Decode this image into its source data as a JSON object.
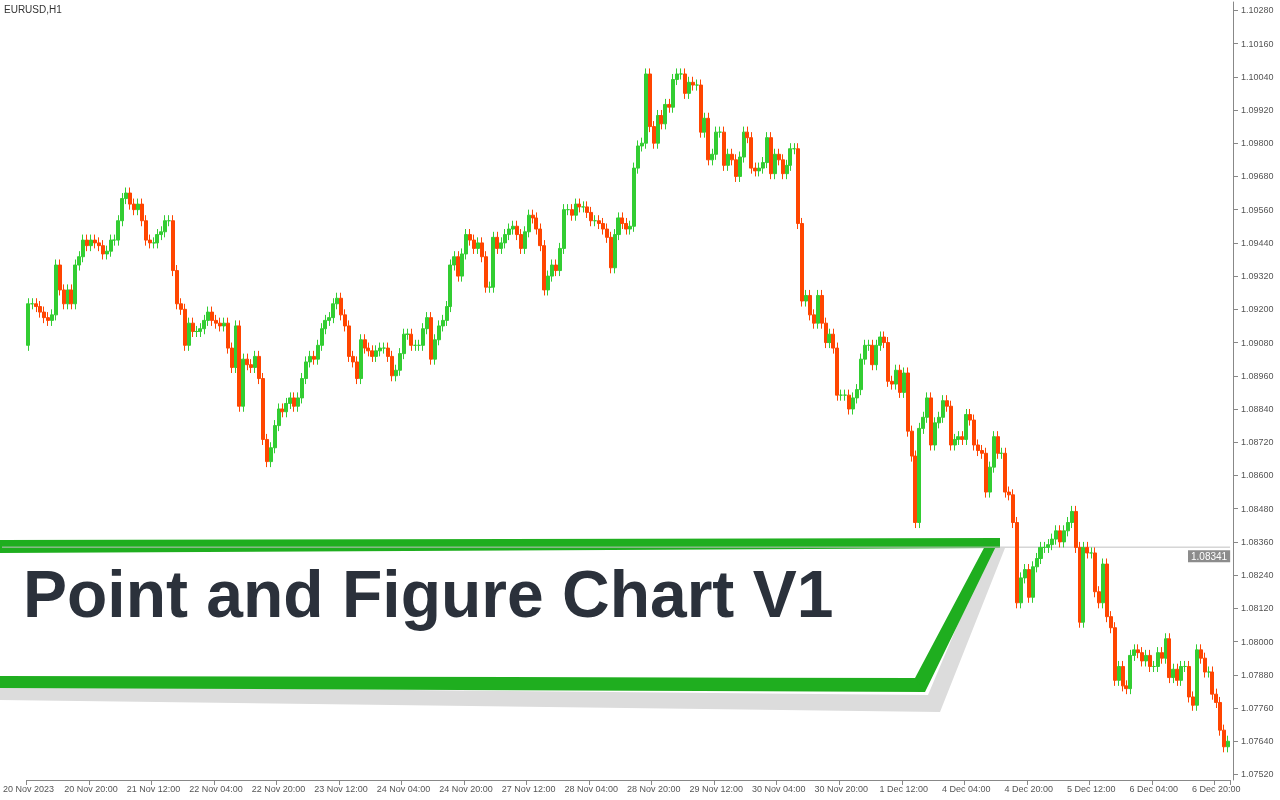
{
  "chart_data": {
    "type": "candlestick",
    "title": "Point and Figure Chart V1",
    "annotations": [
      "EURUSD,H1"
    ],
    "categories": [
      "20 Nov 2023",
      null,
      null,
      null,
      null,
      null,
      null,
      null,
      null,
      null,
      null,
      null,
      null,
      null,
      null,
      null,
      "20 Nov 20:00",
      null,
      null,
      null,
      null,
      null,
      null,
      null,
      null,
      null,
      null,
      null,
      null,
      null,
      null,
      null,
      "21 Nov 12:00",
      null,
      null,
      null,
      null,
      null,
      null,
      null,
      null,
      null,
      null,
      null,
      null,
      null,
      null,
      null,
      "22 Nov 04:00",
      null,
      null,
      null,
      null,
      null,
      null,
      null,
      null,
      null,
      null,
      null,
      null,
      null,
      null,
      null,
      "22 Nov 20:00",
      null,
      null,
      null,
      null,
      null,
      null,
      null,
      null,
      null,
      null,
      null,
      null,
      null,
      null,
      null,
      "23 Nov 12:00",
      null,
      null,
      null,
      null,
      null,
      null,
      null,
      null,
      null,
      null,
      null,
      null,
      null,
      null,
      null,
      "24 Nov 04:00",
      null,
      null,
      null,
      null,
      null,
      null,
      null,
      null,
      null,
      null,
      null,
      null,
      null,
      null,
      null,
      "24 Nov 20:00",
      null,
      null,
      null,
      null,
      null,
      null,
      null,
      null,
      null,
      null,
      null,
      null,
      null,
      null,
      null,
      "27 Nov 12:00",
      null,
      null,
      null,
      null,
      null,
      null,
      null,
      null,
      null,
      null,
      null,
      null,
      null,
      null,
      null,
      "28 Nov 04:00",
      null,
      null,
      null,
      null,
      null,
      null,
      null,
      null,
      null,
      null,
      null,
      null,
      null,
      null,
      null,
      "28 Nov 20:00",
      null,
      null,
      null,
      null,
      null,
      null,
      null,
      null,
      null,
      null,
      null,
      null,
      null,
      null,
      null,
      "29 Nov 12:00",
      null,
      null,
      null,
      null,
      null,
      null,
      null,
      null,
      null,
      null,
      null,
      null,
      null,
      null,
      null,
      "30 Nov 04:00",
      null,
      null,
      null,
      null,
      null,
      null,
      null,
      null,
      null,
      null,
      null,
      null,
      null,
      null,
      null,
      "30 Nov 20:00",
      null,
      null,
      null,
      null,
      null,
      null,
      null,
      null,
      null,
      null,
      null,
      null,
      null,
      null,
      null,
      "1 Dec 12:00",
      null,
      null,
      null,
      null,
      null,
      null,
      null,
      null,
      null,
      null,
      null,
      null,
      null,
      null,
      null,
      "4 Dec 04:00",
      null,
      null,
      null,
      null,
      null,
      null,
      null,
      null,
      null,
      null,
      null,
      null,
      null,
      null,
      null,
      "4 Dec 20:00",
      null,
      null,
      null,
      null,
      null,
      null,
      null,
      null,
      null,
      null,
      null,
      null,
      null,
      null,
      null,
      "5 Dec 12:00",
      null,
      null,
      null,
      null,
      null,
      null,
      null,
      null,
      null,
      null,
      null,
      null,
      null,
      null,
      null,
      "6 Dec 04:00",
      null,
      null,
      null,
      null,
      null,
      null,
      null,
      null,
      null,
      null,
      null,
      null,
      null,
      null,
      null,
      "6 Dec 20:00",
      null,
      null,
      null
    ],
    "ohlc": [
      [
        1.0907,
        1.0924,
        1.0905,
        1.0922
      ],
      [
        1.0922,
        1.0924,
        1.092,
        1.0922
      ],
      [
        1.0922,
        1.0924,
        1.0919,
        1.0921
      ],
      [
        1.0921,
        1.0923,
        1.0917,
        1.0919
      ],
      [
        1.0919,
        1.0921,
        1.0915,
        1.0917
      ],
      [
        1.0917,
        1.0919,
        1.0914,
        1.0916
      ],
      [
        1.0916,
        1.092,
        1.0914,
        1.0918
      ],
      [
        1.0918,
        1.0938,
        1.0916,
        1.0936
      ],
      [
        1.0936,
        1.0938,
        1.0925,
        1.0927
      ],
      [
        1.0927,
        1.0929,
        1.092,
        1.0922
      ],
      [
        1.0922,
        1.0929,
        1.092,
        1.0927
      ],
      [
        1.0927,
        1.0929,
        1.092,
        1.0922
      ],
      [
        1.0922,
        1.0938,
        1.092,
        1.0936
      ],
      [
        1.0936,
        1.0941,
        1.0934,
        1.0939
      ],
      [
        1.0939,
        1.0947,
        1.0937,
        1.0945
      ],
      [
        1.0945,
        1.0947,
        1.0941,
        1.0943
      ],
      [
        1.0943,
        1.0947,
        1.0941,
        1.0945
      ],
      [
        1.0945,
        1.0947,
        1.0942,
        1.0944
      ],
      [
        1.0944,
        1.0946,
        1.0941,
        1.0943
      ],
      [
        1.0943,
        1.0945,
        1.0938,
        1.094
      ],
      [
        1.094,
        1.0943,
        1.0938,
        1.0941
      ],
      [
        1.0941,
        1.0947,
        1.0939,
        1.0945
      ],
      [
        1.0945,
        1.0947,
        1.0943,
        1.0945
      ],
      [
        1.0945,
        1.0954,
        1.0943,
        1.0952
      ],
      [
        1.0952,
        1.0962,
        1.095,
        1.096
      ],
      [
        1.096,
        1.0964,
        1.0958,
        1.0962
      ],
      [
        1.0962,
        1.0964,
        1.0956,
        1.0958
      ],
      [
        1.0958,
        1.096,
        1.0954,
        1.0956
      ],
      [
        1.0956,
        1.096,
        1.0954,
        1.0958
      ],
      [
        1.0958,
        1.096,
        1.095,
        1.0952
      ],
      [
        1.0952,
        1.0954,
        1.0943,
        1.0945
      ],
      [
        1.0945,
        1.0947,
        1.0942,
        1.0944
      ],
      [
        1.0944,
        1.0946,
        1.0942,
        1.0944
      ],
      [
        1.0944,
        1.0949,
        1.0942,
        1.0947
      ],
      [
        1.0947,
        1.095,
        1.0945,
        1.0948
      ],
      [
        1.0948,
        1.0954,
        1.0946,
        1.0952
      ],
      [
        1.0952,
        1.0954,
        1.095,
        1.0952
      ],
      [
        1.0952,
        1.0954,
        1.0932,
        1.0934
      ],
      [
        1.0934,
        1.0936,
        1.092,
        1.0922
      ],
      [
        1.0922,
        1.0924,
        1.0918,
        1.092
      ],
      [
        1.092,
        1.0922,
        1.0905,
        1.0907
      ],
      [
        1.0907,
        1.0917,
        1.0905,
        1.0915
      ],
      [
        1.0915,
        1.0917,
        1.091,
        1.0912
      ],
      [
        1.0912,
        1.0914,
        1.091,
        1.0912
      ],
      [
        1.0912,
        1.0915,
        1.091,
        1.0913
      ],
      [
        1.0913,
        1.0918,
        1.0911,
        1.0916
      ],
      [
        1.0916,
        1.0921,
        1.0914,
        1.0919
      ],
      [
        1.0919,
        1.0921,
        1.0914,
        1.0916
      ],
      [
        1.0916,
        1.0918,
        1.0913,
        1.0915
      ],
      [
        1.0915,
        1.0917,
        1.0912,
        1.0914
      ],
      [
        1.0914,
        1.0917,
        1.0912,
        1.0915
      ],
      [
        1.0915,
        1.0917,
        1.0904,
        1.0906
      ],
      [
        1.0906,
        1.0908,
        1.0897,
        1.0899
      ],
      [
        1.0899,
        1.0916,
        1.0897,
        1.0914
      ],
      [
        1.0914,
        1.0916,
        1.0883,
        1.0885
      ],
      [
        1.0885,
        1.0904,
        1.0883,
        1.0902
      ],
      [
        1.0902,
        1.0904,
        1.0898,
        1.09
      ],
      [
        1.09,
        1.0902,
        1.0897,
        1.0899
      ],
      [
        1.0899,
        1.0905,
        1.0897,
        1.0903
      ],
      [
        1.0903,
        1.0905,
        1.0893,
        1.0895
      ],
      [
        1.0895,
        1.0897,
        1.0871,
        1.0873
      ],
      [
        1.0873,
        1.0875,
        1.0863,
        1.0865
      ],
      [
        1.0865,
        1.0872,
        1.0863,
        1.087
      ],
      [
        1.087,
        1.088,
        1.0868,
        1.0878
      ],
      [
        1.0878,
        1.0886,
        1.0876,
        1.0884
      ],
      [
        1.0884,
        1.0886,
        1.0881,
        1.0883
      ],
      [
        1.0883,
        1.0888,
        1.0881,
        1.0886
      ],
      [
        1.0886,
        1.089,
        1.0884,
        1.0888
      ],
      [
        1.0888,
        1.089,
        1.0883,
        1.0885
      ],
      [
        1.0885,
        1.089,
        1.0883,
        1.0888
      ],
      [
        1.0888,
        1.0897,
        1.0886,
        1.0895
      ],
      [
        1.0895,
        1.0903,
        1.0893,
        1.0901
      ],
      [
        1.0901,
        1.0905,
        1.0899,
        1.0903
      ],
      [
        1.0903,
        1.0905,
        1.09,
        1.0902
      ],
      [
        1.0902,
        1.0909,
        1.09,
        1.0907
      ],
      [
        1.0907,
        1.0915,
        1.0905,
        1.0913
      ],
      [
        1.0913,
        1.0918,
        1.0911,
        1.0916
      ],
      [
        1.0916,
        1.0919,
        1.0914,
        1.0917
      ],
      [
        1.0917,
        1.0924,
        1.0915,
        1.0922
      ],
      [
        1.0922,
        1.0926,
        1.092,
        1.0924
      ],
      [
        1.0924,
        1.0926,
        1.0916,
        1.0918
      ],
      [
        1.0918,
        1.092,
        1.0912,
        1.0914
      ],
      [
        1.0914,
        1.0916,
        1.0901,
        1.0903
      ],
      [
        1.0903,
        1.0905,
        1.0899,
        1.0901
      ],
      [
        1.0901,
        1.0903,
        1.0893,
        1.0895
      ],
      [
        1.0895,
        1.0911,
        1.0893,
        1.0909
      ],
      [
        1.0909,
        1.0911,
        1.0904,
        1.0906
      ],
      [
        1.0906,
        1.0908,
        1.0903,
        1.0905
      ],
      [
        1.0905,
        1.0907,
        1.0901,
        1.0903
      ],
      [
        1.0903,
        1.0907,
        1.0901,
        1.0905
      ],
      [
        1.0905,
        1.0908,
        1.0903,
        1.0906
      ],
      [
        1.0906,
        1.0908,
        1.0904,
        1.0906
      ],
      [
        1.0906,
        1.0908,
        1.0901,
        1.0903
      ],
      [
        1.0903,
        1.0905,
        1.0894,
        1.0896
      ],
      [
        1.0896,
        1.09,
        1.0894,
        1.0898
      ],
      [
        1.0898,
        1.0906,
        1.0896,
        1.0904
      ],
      [
        1.0904,
        1.0913,
        1.0902,
        1.0911
      ],
      [
        1.0911,
        1.0913,
        1.0909,
        1.0911
      ],
      [
        1.0911,
        1.0913,
        1.0905,
        1.0907
      ],
      [
        1.0907,
        1.0909,
        1.0905,
        1.0907
      ],
      [
        1.0907,
        1.0909,
        1.0905,
        1.0907
      ],
      [
        1.0907,
        1.0915,
        1.0905,
        1.0913
      ],
      [
        1.0913,
        1.0919,
        1.0911,
        1.0917
      ],
      [
        1.0917,
        1.0919,
        1.09,
        1.0902
      ],
      [
        1.0902,
        1.0911,
        1.09,
        1.0909
      ],
      [
        1.0909,
        1.0916,
        1.0907,
        1.0914
      ],
      [
        1.0914,
        1.0918,
        1.0912,
        1.0916
      ],
      [
        1.0916,
        1.0923,
        1.0914,
        1.0921
      ],
      [
        1.0921,
        1.0938,
        1.0919,
        1.0936
      ],
      [
        1.0936,
        1.0941,
        1.0934,
        1.0939
      ],
      [
        1.0939,
        1.0941,
        1.093,
        1.0932
      ],
      [
        1.0932,
        1.0942,
        1.093,
        1.094
      ],
      [
        1.094,
        1.0949,
        1.0938,
        1.0947
      ],
      [
        1.0947,
        1.0949,
        1.0943,
        1.0945
      ],
      [
        1.0945,
        1.0947,
        1.094,
        1.0942
      ],
      [
        1.0942,
        1.0946,
        1.094,
        1.0944
      ],
      [
        1.0944,
        1.0946,
        1.0937,
        1.0939
      ],
      [
        1.0939,
        1.0941,
        1.0926,
        1.0928
      ],
      [
        1.0928,
        1.093,
        1.0926,
        1.0928
      ],
      [
        1.0928,
        1.0948,
        1.0926,
        1.0946
      ],
      [
        1.0946,
        1.0948,
        1.094,
        1.0942
      ],
      [
        1.0942,
        1.0946,
        1.094,
        1.0944
      ],
      [
        1.0944,
        1.0949,
        1.0942,
        1.0947
      ],
      [
        1.0947,
        1.0951,
        1.0945,
        1.0949
      ],
      [
        1.0949,
        1.0952,
        1.0947,
        1.095
      ],
      [
        1.095,
        1.0952,
        1.0945,
        1.0947
      ],
      [
        1.0947,
        1.0949,
        1.094,
        1.0942
      ],
      [
        1.0942,
        1.095,
        1.094,
        1.0948
      ],
      [
        1.0948,
        1.0956,
        1.0946,
        1.0954
      ],
      [
        1.0954,
        1.0956,
        1.0951,
        1.0953
      ],
      [
        1.0953,
        1.0955,
        1.0947,
        1.0949
      ],
      [
        1.0949,
        1.0951,
        1.0941,
        1.0943
      ],
      [
        1.0943,
        1.0945,
        1.0925,
        1.0927
      ],
      [
        1.0927,
        1.0934,
        1.0925,
        1.0932
      ],
      [
        1.0932,
        1.0938,
        1.093,
        1.0936
      ],
      [
        1.0936,
        1.0938,
        1.0932,
        1.0934
      ],
      [
        1.0934,
        1.0944,
        1.0932,
        1.0942
      ],
      [
        1.0942,
        1.0958,
        1.094,
        1.0956
      ],
      [
        1.0956,
        1.0958,
        1.0954,
        1.0956
      ],
      [
        1.0956,
        1.0958,
        1.0952,
        1.0954
      ],
      [
        1.0954,
        1.096,
        1.0952,
        1.0958
      ],
      [
        1.0958,
        1.096,
        1.0955,
        1.0957
      ],
      [
        1.0957,
        1.0959,
        1.0955,
        1.0957
      ],
      [
        1.0957,
        1.0959,
        1.0953,
        1.0955
      ],
      [
        1.0955,
        1.0957,
        1.095,
        1.0952
      ],
      [
        1.0952,
        1.0954,
        1.095,
        1.0952
      ],
      [
        1.0952,
        1.0954,
        1.0949,
        1.0951
      ],
      [
        1.0951,
        1.0953,
        1.0947,
        1.0949
      ],
      [
        1.0949,
        1.0951,
        1.0944,
        1.0946
      ],
      [
        1.0946,
        1.0948,
        1.0933,
        1.0935
      ],
      [
        1.0935,
        1.0949,
        1.0933,
        1.0947
      ],
      [
        1.0947,
        1.0955,
        1.0945,
        1.0953
      ],
      [
        1.0953,
        1.0955,
        1.0949,
        1.0951
      ],
      [
        1.0951,
        1.0953,
        1.0947,
        1.0949
      ],
      [
        1.0949,
        1.0952,
        1.0947,
        1.095
      ],
      [
        1.095,
        1.0973,
        1.0948,
        1.0971
      ],
      [
        1.0971,
        1.0981,
        1.0969,
        1.0979
      ],
      [
        1.0979,
        1.0982,
        1.0977,
        1.098
      ],
      [
        1.098,
        1.1007,
        1.0978,
        1.1005
      ],
      [
        1.1005,
        1.1007,
        1.0984,
        1.0986
      ],
      [
        1.0986,
        1.0988,
        1.0978,
        1.098
      ],
      [
        1.098,
        1.0992,
        1.0978,
        1.099
      ],
      [
        1.099,
        1.0992,
        1.0985,
        1.0987
      ],
      [
        1.0987,
        1.0996,
        1.0985,
        1.0994
      ],
      [
        1.0994,
        1.0996,
        1.0991,
        1.0993
      ],
      [
        1.0993,
        1.1005,
        1.0991,
        1.1003
      ],
      [
        1.1003,
        1.1007,
        1.1001,
        1.1005
      ],
      [
        1.1005,
        1.1007,
        1.1003,
        1.1005
      ],
      [
        1.1005,
        1.1007,
        1.0996,
        1.0998
      ],
      [
        1.0998,
        1.1004,
        1.0996,
        1.1002
      ],
      [
        1.1002,
        1.1004,
        1.0999,
        1.1001
      ],
      [
        1.1001,
        1.1003,
        1.0999,
        1.1001
      ],
      [
        1.1001,
        1.1003,
        1.0982,
        1.0984
      ],
      [
        1.0984,
        1.0991,
        1.0982,
        1.0989
      ],
      [
        1.0989,
        1.0991,
        1.0972,
        1.0974
      ],
      [
        1.0974,
        1.0978,
        1.0972,
        1.0976
      ],
      [
        1.0976,
        1.0986,
        1.0974,
        1.0984
      ],
      [
        1.0984,
        1.0986,
        1.0982,
        1.0984
      ],
      [
        1.0984,
        1.0986,
        1.097,
        1.0972
      ],
      [
        1.0972,
        1.0978,
        1.097,
        1.0976
      ],
      [
        1.0976,
        1.0978,
        1.0972,
        1.0974
      ],
      [
        1.0974,
        1.0976,
        1.0966,
        1.0968
      ],
      [
        1.0968,
        1.0977,
        1.0966,
        1.0975
      ],
      [
        1.0975,
        1.0986,
        1.0973,
        1.0984
      ],
      [
        1.0984,
        1.0986,
        1.098,
        1.0982
      ],
      [
        1.0982,
        1.0984,
        1.0969,
        1.0971
      ],
      [
        1.0971,
        1.0973,
        1.0968,
        1.097
      ],
      [
        1.097,
        1.0973,
        1.0968,
        1.0971
      ],
      [
        1.0971,
        1.0975,
        1.0969,
        1.0973
      ],
      [
        1.0973,
        1.0984,
        1.0971,
        1.0982
      ],
      [
        1.0982,
        1.0984,
        1.0967,
        1.0969
      ],
      [
        1.0969,
        1.0978,
        1.0967,
        1.0976
      ],
      [
        1.0976,
        1.0978,
        1.0972,
        1.0974
      ],
      [
        1.0974,
        1.0976,
        1.0967,
        1.0969
      ],
      [
        1.0969,
        1.0974,
        1.0967,
        1.0972
      ],
      [
        1.0972,
        1.098,
        1.097,
        1.0978
      ],
      [
        1.0978,
        1.098,
        1.0976,
        1.0978
      ],
      [
        1.0978,
        1.098,
        1.0949,
        1.0951
      ],
      [
        1.0951,
        1.0953,
        1.0921,
        1.0923
      ],
      [
        1.0923,
        1.0927,
        1.0921,
        1.0925
      ],
      [
        1.0925,
        1.0927,
        1.0916,
        1.0918
      ],
      [
        1.0918,
        1.092,
        1.0913,
        1.0915
      ],
      [
        1.0915,
        1.0927,
        1.0913,
        1.0925
      ],
      [
        1.0925,
        1.0927,
        1.0913,
        1.0915
      ],
      [
        1.0915,
        1.0917,
        1.0906,
        1.0908
      ],
      [
        1.0908,
        1.0913,
        1.0906,
        1.0911
      ],
      [
        1.0911,
        1.0913,
        1.0904,
        1.0906
      ],
      [
        1.0906,
        1.0908,
        1.0887,
        1.0889
      ],
      [
        1.0889,
        1.0891,
        1.0887,
        1.0889
      ],
      [
        1.0889,
        1.0891,
        1.0887,
        1.0889
      ],
      [
        1.0889,
        1.0891,
        1.0882,
        1.0884
      ],
      [
        1.0884,
        1.089,
        1.0882,
        1.0888
      ],
      [
        1.0888,
        1.0893,
        1.0886,
        1.0891
      ],
      [
        1.0891,
        1.0904,
        1.0889,
        1.0902
      ],
      [
        1.0902,
        1.0909,
        1.09,
        1.0907
      ],
      [
        1.0907,
        1.0909,
        1.0905,
        1.0907
      ],
      [
        1.0907,
        1.0909,
        1.0898,
        1.09
      ],
      [
        1.09,
        1.0909,
        1.0898,
        1.0907
      ],
      [
        1.0907,
        1.0912,
        1.0905,
        1.091
      ],
      [
        1.091,
        1.0912,
        1.0906,
        1.0908
      ],
      [
        1.0908,
        1.091,
        1.0892,
        1.0894
      ],
      [
        1.0894,
        1.0896,
        1.0891,
        1.0893
      ],
      [
        1.0893,
        1.09,
        1.0891,
        1.0898
      ],
      [
        1.0898,
        1.09,
        1.0888,
        1.089
      ],
      [
        1.089,
        1.0899,
        1.0888,
        1.0897
      ],
      [
        1.0897,
        1.0899,
        1.0874,
        1.0876
      ],
      [
        1.0876,
        1.0878,
        1.0865,
        1.0867
      ],
      [
        1.0867,
        1.0869,
        1.0841,
        1.0843
      ],
      [
        1.0843,
        1.0879,
        1.0841,
        1.0877
      ],
      [
        1.0877,
        1.0883,
        1.0875,
        1.0881
      ],
      [
        1.0881,
        1.089,
        1.0879,
        1.0888
      ],
      [
        1.0888,
        1.089,
        1.0869,
        1.0871
      ],
      [
        1.0871,
        1.0881,
        1.0869,
        1.0879
      ],
      [
        1.0879,
        1.0883,
        1.0877,
        1.0881
      ],
      [
        1.0881,
        1.0889,
        1.0879,
        1.0887
      ],
      [
        1.0887,
        1.0889,
        1.0883,
        1.0885
      ],
      [
        1.0885,
        1.0887,
        1.0869,
        1.0871
      ],
      [
        1.0871,
        1.0875,
        1.0869,
        1.0873
      ],
      [
        1.0873,
        1.0876,
        1.0871,
        1.0874
      ],
      [
        1.0874,
        1.0876,
        1.0871,
        1.0873
      ],
      [
        1.0873,
        1.0884,
        1.0871,
        1.0882
      ],
      [
        1.0882,
        1.0884,
        1.0878,
        1.088
      ],
      [
        1.088,
        1.0882,
        1.0869,
        1.0871
      ],
      [
        1.0871,
        1.0873,
        1.0867,
        1.0869
      ],
      [
        1.0869,
        1.0871,
        1.0866,
        1.0868
      ],
      [
        1.0868,
        1.087,
        1.0852,
        1.0854
      ],
      [
        1.0854,
        1.0865,
        1.0852,
        1.0863
      ],
      [
        1.0863,
        1.0876,
        1.0861,
        1.0874
      ],
      [
        1.0874,
        1.0876,
        1.0866,
        1.0868
      ],
      [
        1.0868,
        1.087,
        1.0866,
        1.0868
      ],
      [
        1.0868,
        1.087,
        1.0852,
        1.0854
      ],
      [
        1.0854,
        1.0856,
        1.0851,
        1.0853
      ],
      [
        1.0853,
        1.0855,
        1.0841,
        1.0843
      ],
      [
        1.0843,
        1.0845,
        1.0812,
        1.0814
      ],
      [
        1.0814,
        1.0825,
        1.0812,
        1.0823
      ],
      [
        1.0823,
        1.0828,
        1.0821,
        1.0826
      ],
      [
        1.0826,
        1.0828,
        1.0814,
        1.0816
      ],
      [
        1.0816,
        1.0829,
        1.0814,
        1.0827
      ],
      [
        1.0827,
        1.0832,
        1.0825,
        1.083
      ],
      [
        1.083,
        1.0836,
        1.0828,
        1.0834
      ],
      [
        1.0834,
        1.0836,
        1.0832,
        1.0834
      ],
      [
        1.0834,
        1.0837,
        1.0832,
        1.0835
      ],
      [
        1.0835,
        1.0839,
        1.0833,
        1.0837
      ],
      [
        1.0837,
        1.0842,
        1.0835,
        1.084
      ],
      [
        1.084,
        1.0842,
        1.0834,
        1.0836
      ],
      [
        1.0836,
        1.0842,
        1.0834,
        1.084
      ],
      [
        1.084,
        1.0845,
        1.0838,
        1.0843
      ],
      [
        1.0843,
        1.0849,
        1.0841,
        1.0847
      ],
      [
        1.0847,
        1.0849,
        1.0832,
        1.0834
      ],
      [
        1.0834,
        1.0836,
        1.0805,
        1.0807
      ],
      [
        1.0807,
        1.0836,
        1.0805,
        1.0834
      ],
      [
        1.0834,
        1.0836,
        1.083,
        1.0832
      ],
      [
        1.0832,
        1.0834,
        1.083,
        1.0832
      ],
      [
        1.0832,
        1.0834,
        1.0816,
        1.0818
      ],
      [
        1.0818,
        1.082,
        1.0812,
        1.0814
      ],
      [
        1.0814,
        1.083,
        1.0812,
        1.0828
      ],
      [
        1.0828,
        1.083,
        1.0807,
        1.0809
      ],
      [
        1.0809,
        1.0811,
        1.0803,
        1.0805
      ],
      [
        1.0805,
        1.0807,
        1.0784,
        1.0786
      ],
      [
        1.0786,
        1.0793,
        1.0784,
        1.0791
      ],
      [
        1.0791,
        1.0793,
        1.0782,
        1.0784
      ],
      [
        1.0784,
        1.0786,
        1.0781,
        1.0783
      ],
      [
        1.0783,
        1.0797,
        1.0781,
        1.0795
      ],
      [
        1.0795,
        1.0799,
        1.0793,
        1.0797
      ],
      [
        1.0797,
        1.0799,
        1.0794,
        1.0796
      ],
      [
        1.0796,
        1.0798,
        1.0791,
        1.0793
      ],
      [
        1.0793,
        1.0797,
        1.0791,
        1.0795
      ],
      [
        1.0795,
        1.0797,
        1.0789,
        1.0791
      ],
      [
        1.0791,
        1.0793,
        1.0789,
        1.0791
      ],
      [
        1.0791,
        1.0798,
        1.0789,
        1.0796
      ],
      [
        1.0796,
        1.0798,
        1.0792,
        1.0794
      ],
      [
        1.0794,
        1.0803,
        1.0792,
        1.0801
      ],
      [
        1.0801,
        1.0803,
        1.0785,
        1.0787
      ],
      [
        1.0787,
        1.0792,
        1.0785,
        1.079
      ],
      [
        1.079,
        1.0792,
        1.0784,
        1.0786
      ],
      [
        1.0786,
        1.0793,
        1.0784,
        1.0791
      ],
      [
        1.0791,
        1.0793,
        1.0789,
        1.0791
      ],
      [
        1.0791,
        1.0793,
        1.0778,
        1.078
      ],
      [
        1.078,
        1.0782,
        1.0775,
        1.0777
      ],
      [
        1.0777,
        1.0799,
        1.0775,
        1.0797
      ],
      [
        1.0797,
        1.0799,
        1.0792,
        1.0794
      ],
      [
        1.0794,
        1.0796,
        1.0787,
        1.0789
      ],
      [
        1.0789,
        1.0791,
        1.0787,
        1.0789
      ],
      [
        1.0789,
        1.0791,
        1.0779,
        1.0781
      ],
      [
        1.0781,
        1.0783,
        1.0776,
        1.0778
      ],
      [
        1.0778,
        1.078,
        1.0766,
        1.0768
      ],
      [
        1.0768,
        1.077,
        1.076,
        1.0762
      ],
      [
        1.0762,
        1.0766,
        1.076,
        1.0764
      ]
    ],
    "ylim": [
      1.075,
      1.1031
    ],
    "yticks": [
      {
        "value": 1.0752,
        "label": "1.07520"
      },
      {
        "value": 1.0764,
        "label": "1.07640"
      },
      {
        "value": 1.0776,
        "label": "1.07760"
      },
      {
        "value": 1.0788,
        "label": "1.07880"
      },
      {
        "value": 1.08,
        "label": "1.08000"
      },
      {
        "value": 1.0812,
        "label": "1.08120"
      },
      {
        "value": 1.0824,
        "label": "1.08240"
      },
      {
        "value": 1.0836,
        "label": "1.08360"
      },
      {
        "value": 1.0848,
        "label": "1.08480"
      },
      {
        "value": 1.086,
        "label": "1.08600"
      },
      {
        "value": 1.0872,
        "label": "1.08720"
      },
      {
        "value": 1.0884,
        "label": "1.08840"
      },
      {
        "value": 1.0896,
        "label": "1.08960"
      },
      {
        "value": 1.0908,
        "label": "1.09080"
      },
      {
        "value": 1.092,
        "label": "1.09200"
      },
      {
        "value": 1.0932,
        "label": "1.09320"
      },
      {
        "value": 1.0944,
        "label": "1.09440"
      },
      {
        "value": 1.0956,
        "label": "1.09560"
      },
      {
        "value": 1.0968,
        "label": "1.09680"
      },
      {
        "value": 1.098,
        "label": "1.09800"
      },
      {
        "value": 1.0992,
        "label": "1.09920"
      },
      {
        "value": 1.1004,
        "label": "1.10040"
      },
      {
        "value": 1.1016,
        "label": "1.10160"
      },
      {
        "value": 1.1028,
        "label": "1.10280"
      }
    ],
    "ref_lines": [
      {
        "axis": "y",
        "value": 1.08341,
        "label": "1.08341",
        "color": "#c0c0c0"
      }
    ],
    "grid": false
  }
}
